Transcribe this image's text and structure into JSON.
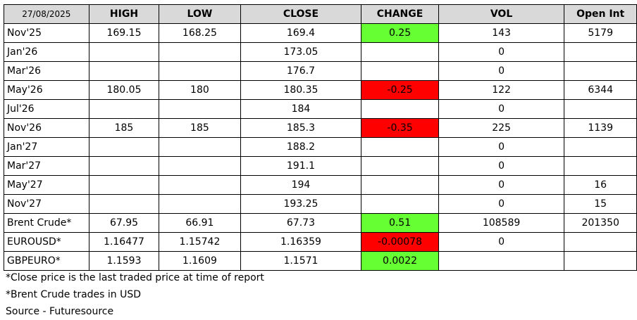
{
  "table": {
    "headers": [
      "27/08/2025",
      "HIGH",
      "LOW",
      "CLOSE",
      "CHANGE",
      "VOL",
      "Open Int"
    ],
    "rows": [
      {
        "name": "Nov'25",
        "high": "169.15",
        "low": "168.25",
        "close": "169.4",
        "change": "0.25",
        "change_dir": "pos",
        "vol": "143",
        "oi": "5179"
      },
      {
        "name": "Jan'26",
        "high": "",
        "low": "",
        "close": "173.05",
        "change": "",
        "change_dir": "",
        "vol": "0",
        "oi": ""
      },
      {
        "name": "Mar'26",
        "high": "",
        "low": "",
        "close": "176.7",
        "change": "",
        "change_dir": "",
        "vol": "0",
        "oi": ""
      },
      {
        "name": "May'26",
        "high": "180.05",
        "low": "180",
        "close": "180.35",
        "change": "-0.25",
        "change_dir": "neg",
        "vol": "122",
        "oi": "6344"
      },
      {
        "name": "Jul'26",
        "high": "",
        "low": "",
        "close": "184",
        "change": "",
        "change_dir": "",
        "vol": "0",
        "oi": ""
      },
      {
        "name": "Nov'26",
        "high": "185",
        "low": "185",
        "close": "185.3",
        "change": "-0.35",
        "change_dir": "neg",
        "vol": "225",
        "oi": "1139"
      },
      {
        "name": "Jan'27",
        "high": "",
        "low": "",
        "close": "188.2",
        "change": "",
        "change_dir": "",
        "vol": "0",
        "oi": ""
      },
      {
        "name": "Mar'27",
        "high": "",
        "low": "",
        "close": "191.1",
        "change": "",
        "change_dir": "",
        "vol": "0",
        "oi": ""
      },
      {
        "name": "May'27",
        "high": "",
        "low": "",
        "close": "194",
        "change": "",
        "change_dir": "",
        "vol": "0",
        "oi": "16"
      },
      {
        "name": "Nov'27",
        "high": "",
        "low": "",
        "close": "193.25",
        "change": "",
        "change_dir": "",
        "vol": "0",
        "oi": "15"
      },
      {
        "name": "Brent Crude*",
        "high": "67.95",
        "low": "66.91",
        "close": "67.73",
        "change": "0.51",
        "change_dir": "pos",
        "vol": "108589",
        "oi": "201350"
      },
      {
        "name": "EUROUSD*",
        "high": "1.16477",
        "low": "1.15742",
        "close": "1.16359",
        "change": "-0.00078",
        "change_dir": "neg",
        "vol": "0",
        "oi": ""
      },
      {
        "name": "GBPEURO*",
        "high": "1.1593",
        "low": "1.1609",
        "close": "1.1571",
        "change": "0.0022",
        "change_dir": "pos",
        "vol": "",
        "oi": ""
      }
    ]
  },
  "notes": [
    "*Close price is the last traded price at time of report",
    "*Brent Crude trades in USD",
    "Source - Futuresource"
  ],
  "colors": {
    "header_bg": "#d9d9d9",
    "positive": "#66ff33",
    "negative": "#ff0000"
  }
}
